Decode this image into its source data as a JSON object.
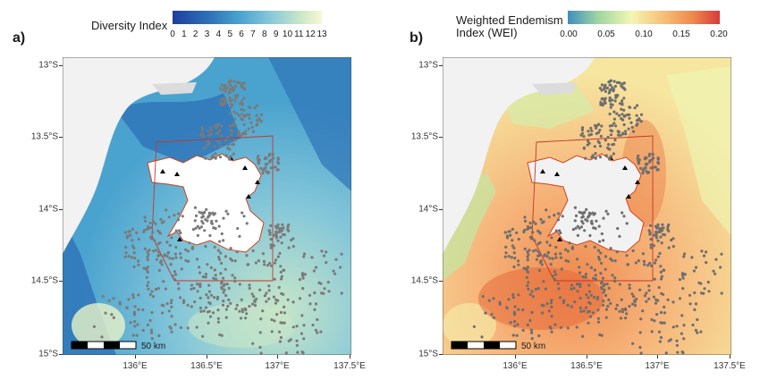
{
  "panels": [
    {
      "label": "a)",
      "legend": {
        "title": "Diversity Index",
        "ticks": [
          "0",
          "1",
          "2",
          "3",
          "4",
          "5",
          "6",
          "7",
          "8",
          "9",
          "10",
          "11",
          "12",
          "13"
        ],
        "colors": [
          "#1f3d9e",
          "#2e73b8",
          "#4aa3cf",
          "#85c7d9",
          "#c8e6c8",
          "#f6f8d3"
        ]
      },
      "lat_labels": [
        "13°S",
        "13.5°S",
        "14°S",
        "14.5°S",
        "15°S"
      ],
      "lon_labels": [
        "136°E",
        "136.5°E",
        "137°E",
        "137.5°E"
      ],
      "scalebar_label": "50 km"
    },
    {
      "label": "b)",
      "legend": {
        "title_line1": "Weighted Endemism",
        "title_line2": "Index (WEI)",
        "ticks": [
          "0.00",
          "0.05",
          "0.10",
          "0.15",
          "0.20"
        ],
        "colors": [
          "#3e8fbf",
          "#9fd6a0",
          "#f3f6b4",
          "#f6c27a",
          "#ef8a4f",
          "#d73a3a"
        ]
      },
      "lat_labels": [
        "13°S",
        "13.5°S",
        "14°S",
        "14.5°S",
        "15°S"
      ],
      "lon_labels": [
        "136°E",
        "136.5°E",
        "137°E",
        "137.5°E"
      ],
      "scalebar_label": "50 km"
    }
  ]
}
